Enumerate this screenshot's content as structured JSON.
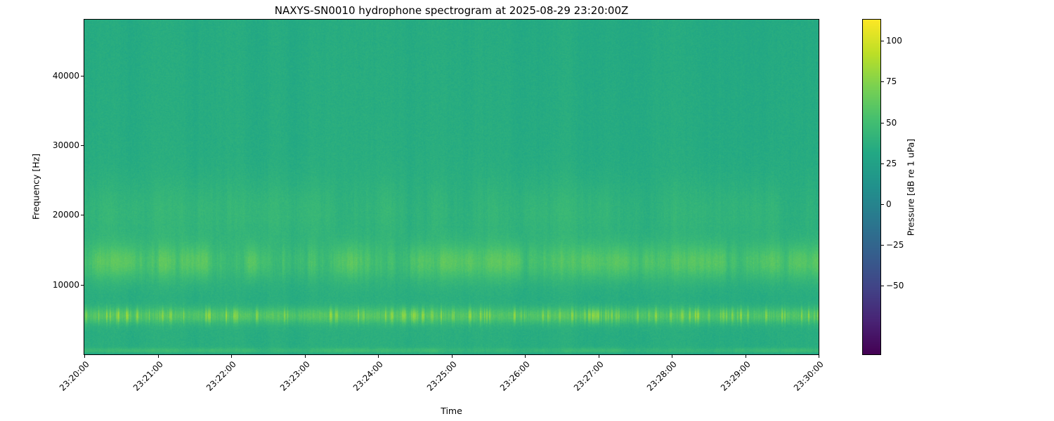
{
  "chart_data": {
    "type": "heatmap",
    "subtype": "spectrogram",
    "title": "NAXYS-SN0010 hydrophone spectrogram at 2025-08-29 23:20:00Z",
    "xlabel": "Time",
    "ylabel": "Frequency [Hz]",
    "x_tick_labels": [
      "23:20:00",
      "23:21:00",
      "23:22:00",
      "23:23:00",
      "23:24:00",
      "23:25:00",
      "23:26:00",
      "23:27:00",
      "23:28:00",
      "23:29:00",
      "23:30:00"
    ],
    "y_ticks": [
      {
        "value": 10000,
        "label": "10000"
      },
      {
        "value": 20000,
        "label": "20000"
      },
      {
        "value": 30000,
        "label": "30000"
      },
      {
        "value": 40000,
        "label": "40000"
      }
    ],
    "ylim": [
      0,
      48000
    ],
    "time_span_minutes": 10,
    "legend": "none",
    "grid": false,
    "colorbar": {
      "label": "Pressure [dB re 1 uPa]",
      "ticks": [
        {
          "value": 100,
          "label": "100"
        },
        {
          "value": 75,
          "label": "75"
        },
        {
          "value": 50,
          "label": "50"
        },
        {
          "value": 25,
          "label": "25"
        },
        {
          "value": 0,
          "label": "0"
        },
        {
          "value": -25,
          "label": "−25"
        },
        {
          "value": -50,
          "label": "−50"
        }
      ],
      "vmin": -92,
      "vmax": 113,
      "colormap": "viridis",
      "colormap_stops": [
        "#440154",
        "#482475",
        "#414487",
        "#355f8d",
        "#2a788e",
        "#21918c",
        "#22a884",
        "#44bf70",
        "#7ad151",
        "#bddf26",
        "#fde725"
      ]
    },
    "background_level_db": 36,
    "spectral_tilt_db": -2.5,
    "pixel_noise_db": 3.5,
    "features": [
      {
        "kind": "tonal-band",
        "center_hz": 5600,
        "sigma_hz": 800,
        "min_boost_db": 14,
        "max_boost_db": 46,
        "striation": "strong",
        "description": "bright intermittent tonal band near 5-6 kHz (yellow dashes)"
      },
      {
        "kind": "tonal-band",
        "center_hz": 13300,
        "sigma_hz": 1900,
        "min_boost_db": 7,
        "max_boost_db": 26,
        "striation": "moderate",
        "description": "diffuse elevated band ~11-16 kHz with vertical striations"
      },
      {
        "kind": "tonal-band",
        "center_hz": 20500,
        "sigma_hz": 3200,
        "min_boost_db": 2,
        "max_boost_db": 9,
        "striation": "moderate",
        "description": "weak elevated region ~17-24 kHz"
      },
      {
        "kind": "tonal-band",
        "center_hz": 600,
        "sigma_hz": 260,
        "min_boost_db": 5,
        "max_boost_db": 13,
        "striation": "moderate",
        "description": "narrow low-frequency line near 600 Hz"
      },
      {
        "kind": "broadband-striations",
        "amplitude_db": 4,
        "description": "faint full-height vertical transients"
      },
      {
        "kind": "low-frequency-rolloff",
        "below_hz": 350,
        "drop_db": 12
      }
    ]
  }
}
